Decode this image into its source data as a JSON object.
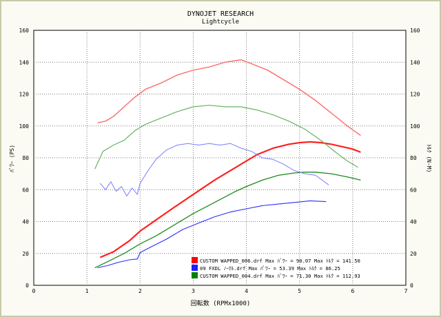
{
  "chart_data": {
    "type": "line",
    "title": "DYNOJET  RESEARCH",
    "subtitle": "Lightcycle",
    "xlabel": "回転数 (RPMx1000)",
    "ylabel_left": "ﾊﾟﾜｰ (PS)",
    "ylabel_right": "ﾄﾙｸ (N-M)",
    "xlim": [
      0,
      7
    ],
    "ylim": [
      0,
      160
    ],
    "x_ticks": [
      "0",
      "1",
      "2",
      "3",
      "4",
      "5",
      "6",
      "7"
    ],
    "y_ticks": [
      "0",
      "20",
      "40",
      "60",
      "80",
      "100",
      "120",
      "140",
      "160"
    ],
    "grid": true,
    "legend_position": "bottom-right",
    "colors": {
      "red": "#ff2020",
      "red_light": "#ff7070",
      "blue": "#2a2aff",
      "blue_light": "#7a7aff",
      "green": "#1a8a1a",
      "green_light": "#66b266"
    },
    "legend": [
      {
        "color": "#ff0000",
        "text": "CUSTOM WAPPED_006.drf Max ﾊﾟﾜｰ = 90.07   Max ﾄﾙｸ = 141.50"
      },
      {
        "color": "#2020ff",
        "text": "09 FXDL ﾉｰﾏﾙ.drf Max ﾊﾟﾜｰ = 53.39   Max ﾄﾙｸ = 86.25"
      },
      {
        "color": "#008000",
        "text": "CUSTOM WAPPED_004.drf Max ﾊﾟﾜｰ = 71.30   Max ﾄﾙｸ = 112.93"
      }
    ],
    "series": [
      {
        "color": "#ff2020",
        "width": 2.2,
        "x": [
          1.25,
          1.5,
          1.8,
          2.0,
          2.3,
          2.6,
          3.0,
          3.4,
          3.8,
          4.0,
          4.2,
          4.5,
          4.8,
          5.0,
          5.2,
          5.4,
          5.6,
          5.8,
          6.0,
          6.15
        ],
        "y": [
          17.5,
          21,
          28,
          34,
          41,
          48,
          57,
          66,
          74,
          78,
          82,
          86,
          88.5,
          89.5,
          90,
          89.5,
          88.5,
          87,
          85.5,
          83.5
        ]
      },
      {
        "color": "#ff7070",
        "width": 1.5,
        "x": [
          1.2,
          1.35,
          1.5,
          1.7,
          1.9,
          2.1,
          2.4,
          2.7,
          3.0,
          3.3,
          3.6,
          3.9,
          4.1,
          4.4,
          4.7,
          5.0,
          5.3,
          5.6,
          5.9,
          6.15
        ],
        "y": [
          102,
          103,
          106,
          112,
          118,
          123,
          127,
          132,
          135,
          137,
          140,
          141.5,
          139,
          135,
          129,
          123,
          116,
          108,
          100,
          94
        ]
      },
      {
        "color": "#1a8a1a",
        "width": 1.3,
        "x": [
          1.15,
          1.4,
          1.7,
          2.0,
          2.3,
          2.6,
          3.0,
          3.4,
          3.8,
          4.0,
          4.3,
          4.6,
          4.9,
          5.1,
          5.3,
          5.6,
          5.9,
          6.15
        ],
        "y": [
          11,
          15,
          20,
          26,
          31,
          37,
          45,
          52,
          59,
          62,
          66,
          69,
          70.5,
          71,
          71,
          70,
          68,
          66
        ]
      },
      {
        "color": "#66b266",
        "width": 1.2,
        "x": [
          1.15,
          1.3,
          1.5,
          1.7,
          1.9,
          2.1,
          2.4,
          2.7,
          3.0,
          3.3,
          3.6,
          3.9,
          4.2,
          4.5,
          4.8,
          5.1,
          5.4,
          5.7,
          5.9,
          6.1
        ],
        "y": [
          73,
          84,
          88,
          91,
          97,
          101,
          105,
          109,
          112,
          113,
          112,
          112,
          110,
          107,
          103,
          98,
          91,
          83,
          78,
          74
        ]
      },
      {
        "color": "#2a2aff",
        "width": 1.1,
        "x": [
          1.2,
          1.4,
          1.6,
          1.8,
          1.95,
          2.0,
          2.2,
          2.5,
          2.8,
          3.1,
          3.4,
          3.7,
          4.0,
          4.3,
          4.6,
          4.9,
          5.2,
          5.5
        ],
        "y": [
          11,
          12.5,
          14.5,
          16,
          16.5,
          20.5,
          24,
          29,
          35,
          39,
          43,
          46,
          48,
          50,
          51,
          52,
          53,
          52.5
        ]
      },
      {
        "color": "#7a7aff",
        "width": 1.0,
        "x": [
          1.25,
          1.35,
          1.45,
          1.55,
          1.65,
          1.75,
          1.85,
          1.95,
          2.0,
          2.15,
          2.3,
          2.5,
          2.7,
          2.9,
          3.1,
          3.3,
          3.5,
          3.7,
          3.9,
          4.1,
          4.3,
          4.5,
          4.7,
          4.9,
          5.1,
          5.3,
          5.55
        ],
        "y": [
          64,
          60,
          65,
          59,
          62,
          56,
          61,
          57,
          64,
          72,
          79,
          85,
          88,
          89,
          88,
          89,
          88,
          89,
          86,
          84,
          80,
          79,
          76,
          72,
          70,
          69,
          63
        ]
      }
    ]
  }
}
